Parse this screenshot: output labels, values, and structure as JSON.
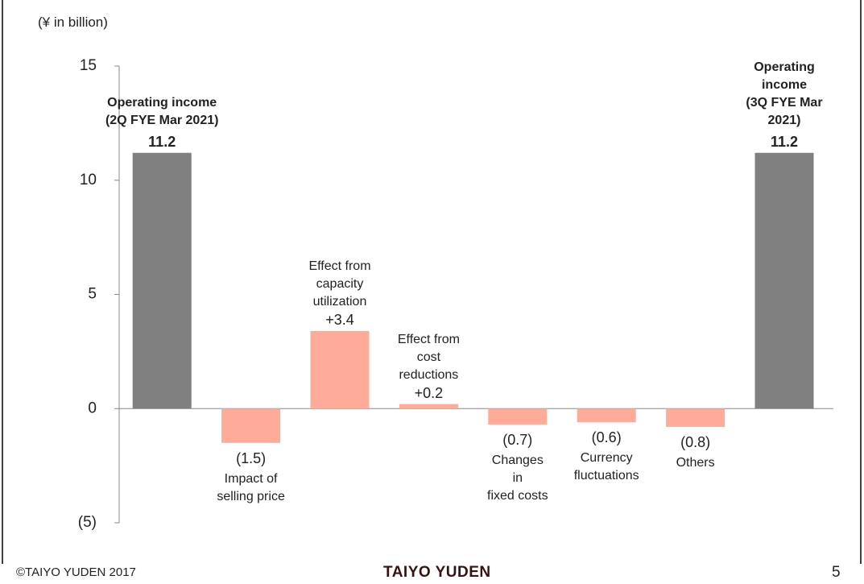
{
  "unit_label": "(¥ in billion)",
  "chart_data": {
    "type": "bar",
    "categories": [
      "Operating income\n(2Q FYE Mar 2021)",
      "Impact of\nselling price",
      "Effect from\ncapacity\nutilization",
      "Effect from\ncost\nreductions",
      "Changes\nin\nfixed costs",
      "Currency\nfluctuations",
      "Others",
      "Operating income\n(3Q FYE Mar 2021)"
    ],
    "values": [
      11.2,
      -1.5,
      3.4,
      0.2,
      -0.7,
      -0.6,
      -0.8,
      11.2
    ],
    "value_labels": [
      "11.2",
      "(1.5)",
      "+3.4",
      "+0.2",
      "(0.7)",
      "(0.6)",
      "(0.8)",
      "11.2"
    ],
    "colors": [
      "#808080",
      "#ffab99",
      "#ffab99",
      "#ffab99",
      "#ffab99",
      "#ffab99",
      "#ffab99",
      "#808080"
    ],
    "ylim": [
      -5,
      15
    ],
    "yticks": [
      {
        "value": -5,
        "label": "(5)"
      },
      0,
      5,
      10,
      15
    ]
  },
  "footer": {
    "copyright": "©TAIYO YUDEN 2017",
    "logo": "TAIYO YUDEN",
    "page": "5"
  }
}
